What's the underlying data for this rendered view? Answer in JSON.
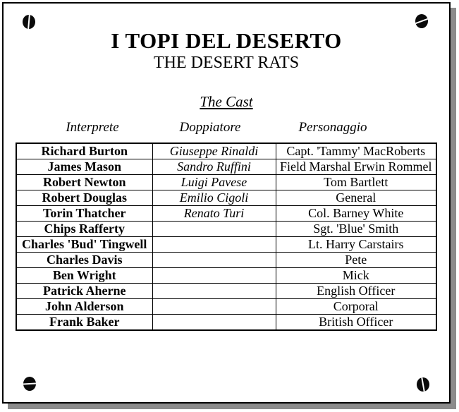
{
  "page": {
    "title": "I TOPI DEL DESERTO",
    "subtitle": "THE DESERT RATS",
    "section_heading": "The Cast"
  },
  "cast_table": {
    "columns": [
      "Interprete",
      "Doppiatore",
      "Personaggio"
    ],
    "rows": [
      {
        "interprete": "Richard Burton",
        "doppiatore": "Giuseppe Rinaldi",
        "personaggio": "Capt. 'Tammy' MacRoberts"
      },
      {
        "interprete": "James Mason",
        "doppiatore": "Sandro Ruffini",
        "personaggio": "Field Marshal Erwin Rommel"
      },
      {
        "interprete": "Robert Newton",
        "doppiatore": "Luigi Pavese",
        "personaggio": "Tom Bartlett"
      },
      {
        "interprete": "Robert Douglas",
        "doppiatore": "Emilio Cigoli",
        "personaggio": "General"
      },
      {
        "interprete": "Torin Thatcher",
        "doppiatore": "Renato Turi",
        "personaggio": "Col. Barney White"
      },
      {
        "interprete": "Chips Rafferty",
        "doppiatore": "",
        "personaggio": "Sgt. 'Blue' Smith"
      },
      {
        "interprete": "Charles 'Bud' Tingwell",
        "doppiatore": "",
        "personaggio": "Lt. Harry Carstairs"
      },
      {
        "interprete": "Charles Davis",
        "doppiatore": "",
        "personaggio": "Pete"
      },
      {
        "interprete": "Ben Wright",
        "doppiatore": "",
        "personaggio": "Mick"
      },
      {
        "interprete": "Patrick Aherne",
        "doppiatore": "",
        "personaggio": "English Officer"
      },
      {
        "interprete": "John Alderson",
        "doppiatore": "",
        "personaggio": "Corporal"
      },
      {
        "interprete": "Frank Baker",
        "doppiatore": "",
        "personaggio": "British Officer"
      }
    ]
  },
  "decorations": {
    "corner_icons": [
      "screw-icon",
      "screw-icon",
      "screw-icon",
      "screw-icon"
    ],
    "border_color": "#000000",
    "shadow_color": "#8c8c8c",
    "background_color": "#ffffff"
  }
}
